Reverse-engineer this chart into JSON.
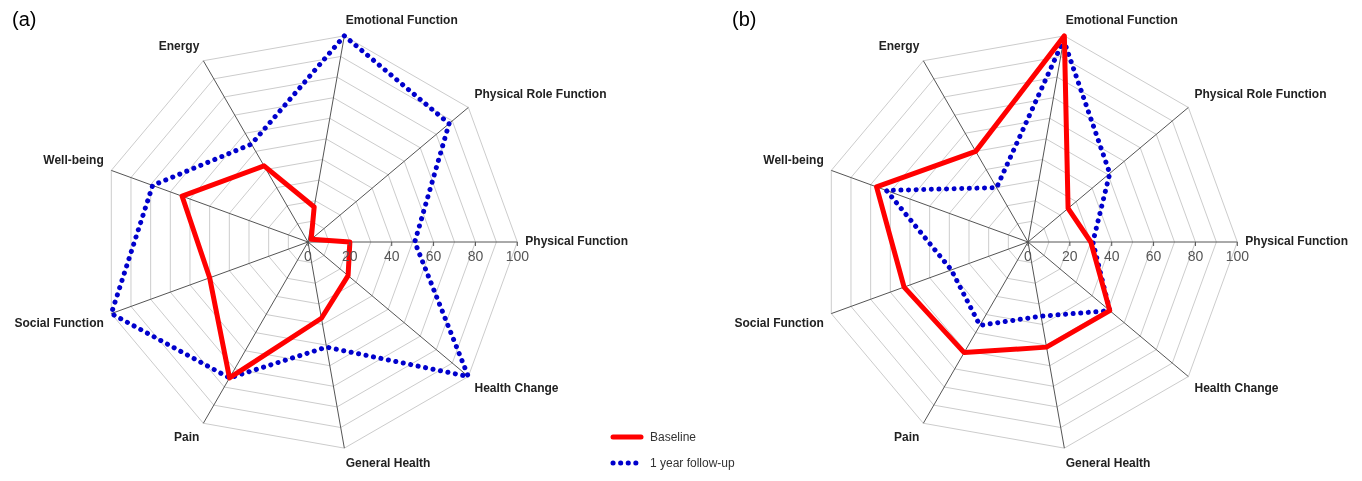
{
  "chart_data": [
    {
      "type": "radar",
      "title": "(a)",
      "categories": [
        "Emotional Function",
        "Physical Role Function",
        "Physical Function",
        "Health Change",
        "General Health",
        "Pain",
        "Social Function",
        "Well-being",
        "Energy"
      ],
      "series": [
        {
          "name": "Baseline",
          "color": "#ff0000",
          "line_style": "solid",
          "values": [
            17,
            2,
            20,
            25,
            37,
            75,
            50,
            64,
            42
          ]
        },
        {
          "name": "1 year follow-up",
          "color": "#0000cc",
          "line_style": "dotted",
          "values": [
            100,
            88,
            51,
            100,
            51,
            75,
            100,
            79,
            54
          ]
        }
      ],
      "ylim": [
        0,
        100
      ],
      "yticks": [
        0,
        20,
        40,
        60,
        80,
        100
      ],
      "marker": "none",
      "grid": true,
      "legend": "bottom right"
    },
    {
      "type": "radar",
      "title": "(b)",
      "categories": [
        "Emotional Function",
        "Physical Role Function",
        "Physical Function",
        "Health Change",
        "General Health",
        "Pain",
        "Social Function",
        "Well-being",
        "Energy"
      ],
      "series": [
        {
          "color": "#ff0000",
          "line_style": "solid",
          "values": [
            100,
            25,
            30,
            51,
            51,
            61,
            63,
            77,
            50
          ]
        },
        {
          "color": "#0000cc",
          "line_style": "dotted",
          "values": [
            98,
            51,
            31,
            51,
            36,
            46,
            39,
            72,
            30
          ]
        }
      ],
      "ylim": [
        0,
        100
      ],
      "yticks": [
        0,
        20,
        40,
        60,
        80,
        100
      ],
      "marker": "none",
      "grid": true
    }
  ]
}
